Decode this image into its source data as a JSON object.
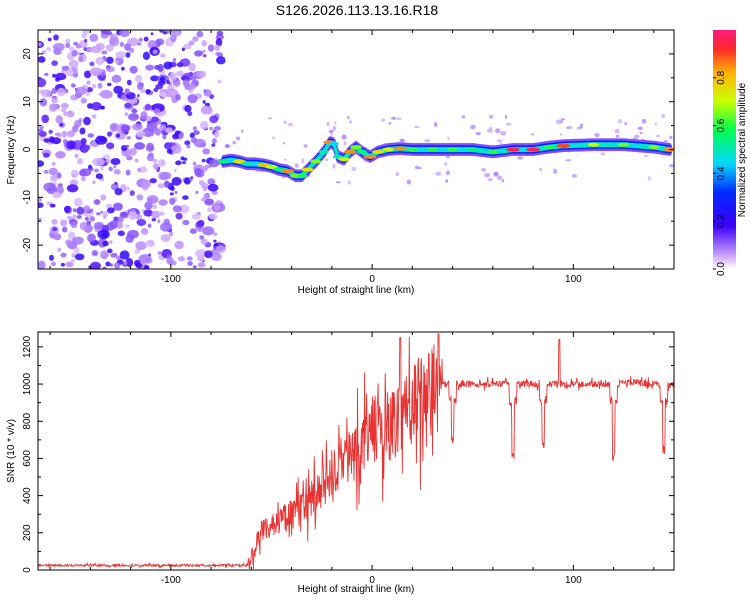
{
  "figure": {
    "title": "S126.2026.113.13.16.R18"
  },
  "chart_data": [
    {
      "type": "heatmap",
      "name": "spectrogram",
      "xlabel": "Height of straight line (km)",
      "ylabel": "Frequency (Hz)",
      "xlim": [
        -166,
        150
      ],
      "ylim": [
        -25,
        25
      ],
      "xticks": [
        -100,
        0,
        100
      ],
      "yticks": [
        -20,
        -10,
        0,
        10,
        20
      ],
      "colorbar": {
        "label": "Normalized spectral amplitude",
        "range": [
          0,
          1
        ],
        "ticks": [
          "0.0",
          "0.2",
          "0.4",
          "0.6",
          "0.8"
        ],
        "tick_values": [
          0.0,
          0.2,
          0.4,
          0.6,
          0.8
        ],
        "colormap": "rainbow (magenta-blue-cyan-green-yellow-red)"
      },
      "noise_region_x": [
        -166,
        -75
      ],
      "ridge": {
        "x": [
          -74,
          -70,
          -66,
          -62,
          -58,
          -54,
          -50,
          -46,
          -42,
          -38,
          -35,
          -32,
          -28,
          -24,
          -21,
          -19,
          -17,
          -14,
          -11,
          -8,
          -5,
          -1,
          3,
          8,
          14,
          20,
          30,
          40,
          50,
          60,
          70,
          80,
          88,
          95,
          110,
          125,
          140,
          148
        ],
        "freq": [
          -2.5,
          -2.2,
          -2.5,
          -3.0,
          -3.0,
          -3.2,
          -3.6,
          -4.2,
          -4.5,
          -5.5,
          -5.5,
          -4.2,
          -2.5,
          -0.5,
          1.5,
          1.2,
          -1.5,
          -2.0,
          -0.5,
          0.5,
          -0.5,
          -1.5,
          -0.5,
          0.0,
          0.2,
          0.0,
          0.0,
          0.0,
          0.0,
          -0.5,
          0.0,
          0.0,
          0.5,
          0.8,
          1.0,
          1.0,
          0.5,
          0.0
        ],
        "amplitude": [
          0.55,
          0.45,
          0.75,
          0.5,
          0.45,
          0.8,
          0.7,
          0.55,
          0.85,
          0.65,
          0.6,
          0.75,
          0.65,
          0.5,
          0.85,
          0.45,
          0.5,
          0.7,
          0.85,
          0.65,
          0.55,
          0.85,
          0.75,
          0.7,
          0.85,
          0.6,
          0.6,
          0.6,
          0.55,
          0.6,
          0.95,
          0.95,
          0.6,
          0.9,
          0.7,
          0.65,
          0.65,
          0.85
        ]
      }
    },
    {
      "type": "line",
      "name": "snr",
      "xlabel": "Height of straight line (km)",
      "ylabel": "SNR (10 * v/v)",
      "xlim": [
        -166,
        150
      ],
      "ylim": [
        0,
        1280
      ],
      "xticks": [
        -100,
        0,
        100
      ],
      "yticks": [
        0,
        200,
        400,
        600,
        800,
        1000,
        1200
      ],
      "color": "#e83232",
      "series": [
        {
          "name": "SNR",
          "x": [
            -166,
            -140,
            -120,
            -100,
            -80,
            -62,
            -58,
            -55,
            -50,
            -45,
            -40,
            -35,
            -30,
            -25,
            -20,
            -15,
            -10,
            -5,
            0,
            5,
            10,
            15,
            20,
            25,
            30,
            35,
            40,
            50,
            60,
            70,
            80,
            90,
            100,
            110,
            120,
            130,
            140,
            150
          ],
          "y": [
            25,
            25,
            25,
            25,
            25,
            25,
            120,
            220,
            240,
            270,
            300,
            320,
            380,
            420,
            520,
            580,
            620,
            680,
            750,
            760,
            780,
            860,
            900,
            940,
            970,
            1000,
            1000,
            1000,
            1000,
            1000,
            1000,
            1000,
            1000,
            1000,
            1000,
            1010,
            1000,
            1000
          ]
        }
      ],
      "dips": [
        {
          "x": 40,
          "y": 680
        },
        {
          "x": 70,
          "y": 590
        },
        {
          "x": 85,
          "y": 640
        },
        {
          "x": 120,
          "y": 580
        },
        {
          "x": 145,
          "y": 620
        }
      ],
      "spikes": [
        {
          "x": 14,
          "y": 1250
        },
        {
          "x": 33,
          "y": 1270
        },
        {
          "x": 93,
          "y": 1240
        }
      ]
    }
  ]
}
